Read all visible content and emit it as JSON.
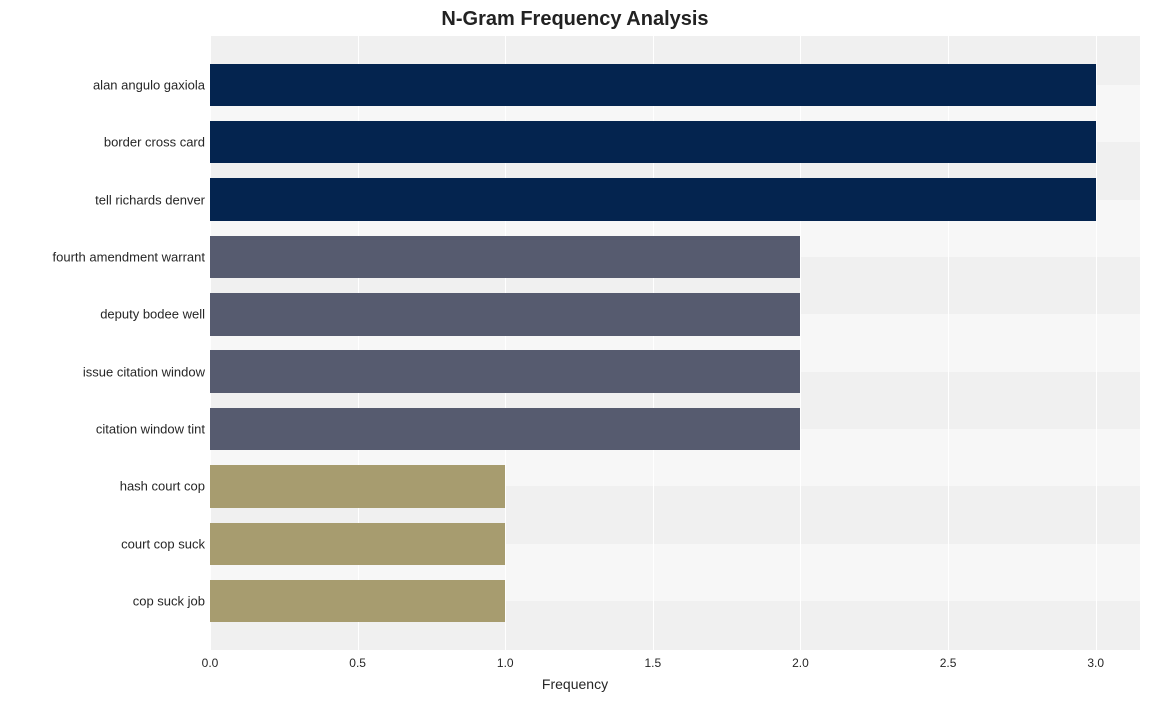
{
  "chart": {
    "type": "bar-horizontal",
    "title": "N-Gram Frequency Analysis",
    "title_fontsize": 20,
    "title_fontweight": "bold",
    "title_color": "#222222",
    "xlabel": "Frequency",
    "xlabel_fontsize": 14,
    "xlabel_color": "#262626",
    "background_color": "#ffffff",
    "plot_background_color": "#f7f7f7",
    "grid_band_color": "#f0f0f0",
    "grid_vline_color": "#ffffff",
    "xlim": [
      0.0,
      3.15
    ],
    "xticks": [
      0.0,
      0.5,
      1.0,
      1.5,
      2.0,
      2.5,
      3.0
    ],
    "xtick_labels": [
      "0.0",
      "0.5",
      "1.0",
      "1.5",
      "2.0",
      "2.5",
      "3.0"
    ],
    "tick_fontsize": 12,
    "tick_color": "#262626",
    "ylabel_fontsize": 13,
    "bar_height_ratio": 0.74,
    "categories": [
      "alan angulo gaxiola",
      "border cross card",
      "tell richards denver",
      "fourth amendment warrant",
      "deputy bodee well",
      "issue citation window",
      "citation window tint",
      "hash court cop",
      "court cop suck",
      "cop suck job"
    ],
    "values": [
      3,
      3,
      3,
      2,
      2,
      2,
      2,
      1,
      1,
      1
    ],
    "bar_colors": [
      "#04244f",
      "#04244f",
      "#04244f",
      "#565b6f",
      "#565b6f",
      "#565b6f",
      "#565b6f",
      "#a79c6f",
      "#a79c6f",
      "#a79c6f"
    ]
  }
}
